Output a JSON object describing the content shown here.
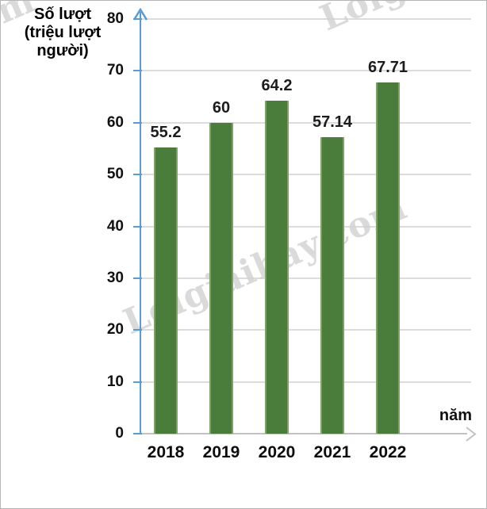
{
  "page": {
    "watermark_text": "Loigiaihay.com",
    "background": "#ffffff",
    "border_color": "#b5b5b5"
  },
  "chart_data": {
    "type": "bar",
    "title": "",
    "ylabel_lines": [
      "Số lượt",
      "(triệu lượt",
      "người)"
    ],
    "xlabel": "năm",
    "categories": [
      "2018",
      "2019",
      "2020",
      "2021",
      "2022"
    ],
    "values": [
      55.2,
      60,
      64.2,
      57.14,
      67.71
    ],
    "value_labels": [
      "55.2",
      "60",
      "64.2",
      "57.14",
      "67.71"
    ],
    "ylim": [
      0,
      80
    ],
    "yticks": [
      0,
      10,
      20,
      30,
      40,
      50,
      60,
      70,
      80
    ],
    "grid": true,
    "legend_position": "none",
    "colors": {
      "bar": "#4a7c3c",
      "bar_edge": "#7ea263",
      "y_axis": "#5b9bd5",
      "x_axis": "#c2c2c2",
      "gridline": "#dcdcdc",
      "text": "#111111",
      "watermark": "#d2d2d2"
    }
  }
}
